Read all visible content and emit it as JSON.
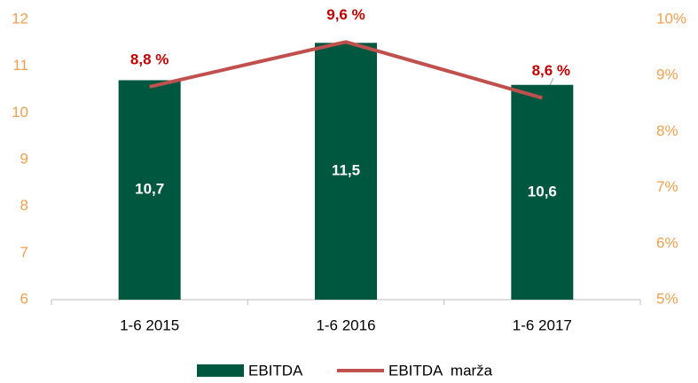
{
  "chart_data": {
    "type": "bar",
    "categories": [
      "1-6 2015",
      "1-6 2016",
      "1-6 2017"
    ],
    "series": [
      {
        "name": "EBITDA",
        "type": "bar",
        "color": "#00573f",
        "values": [
          10.7,
          11.5,
          10.6
        ],
        "value_labels": [
          "10,7",
          "11,5",
          "10,6"
        ]
      },
      {
        "name": "EBITDA  marža",
        "type": "line",
        "axis": "y2",
        "color": "#c0504d",
        "values": [
          8.8,
          9.6,
          8.6
        ],
        "value_labels": [
          "8,8 %",
          "9,6 %",
          "8,6 %"
        ]
      }
    ],
    "ylim": [
      6,
      12
    ],
    "yticks": [
      6,
      7,
      8,
      9,
      10,
      11,
      12
    ],
    "y2lim": [
      5,
      10
    ],
    "y2ticks": [
      {
        "value": 5,
        "label": "5%"
      },
      {
        "value": 6,
        "label": "6%"
      },
      {
        "value": 7,
        "label": "7%"
      },
      {
        "value": 8,
        "label": "8%"
      },
      {
        "value": 9,
        "label": "9%"
      },
      {
        "value": 10,
        "label": "10%"
      }
    ],
    "tick_color": "#f0a050",
    "line_label_color": "#c00000",
    "legend": "bottom",
    "grid": false
  }
}
